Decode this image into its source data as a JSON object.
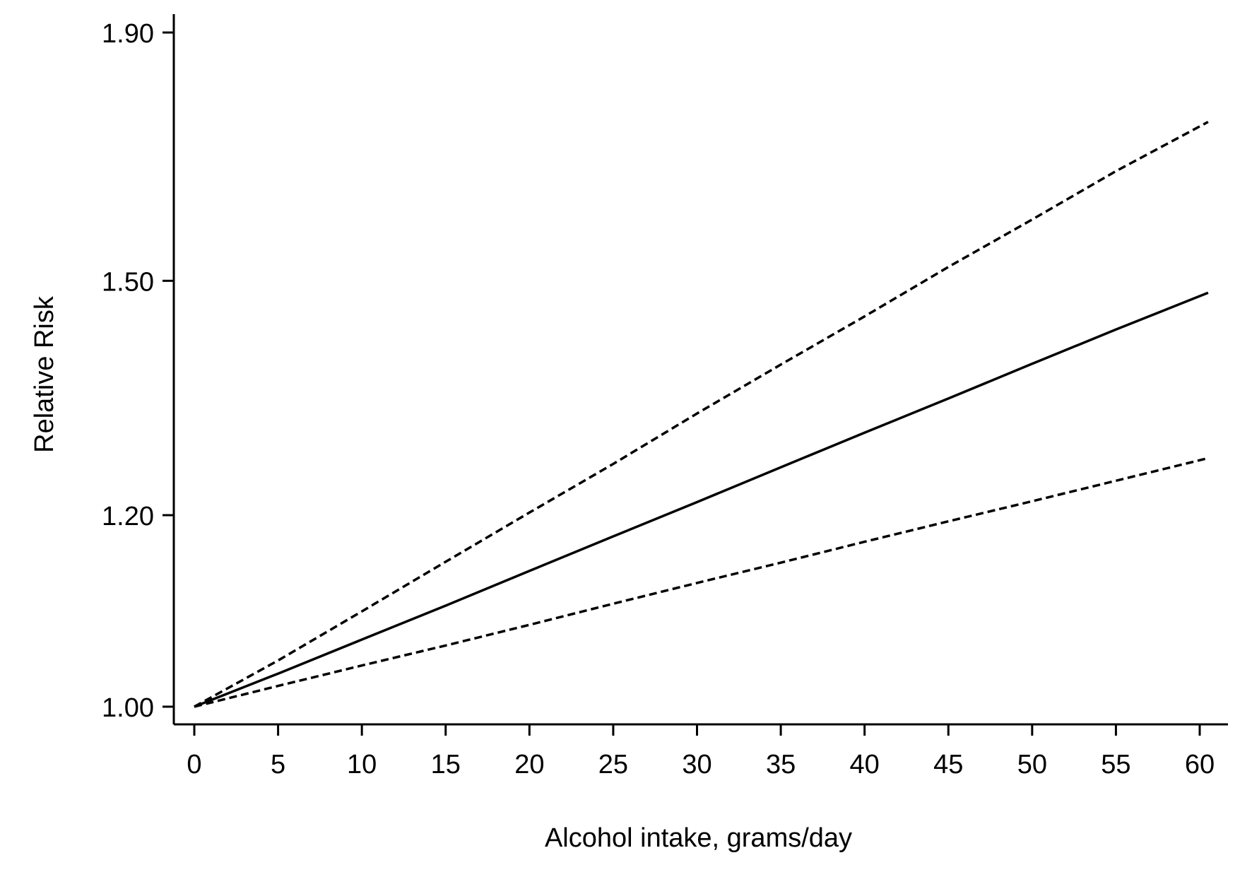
{
  "chart_data": {
    "type": "line",
    "title": "",
    "xlabel": "Alcohol intake, grams/day",
    "ylabel": "Relative Risk",
    "xlim": [
      0,
      60.5
    ],
    "ylim": [
      0.97,
      1.91
    ],
    "x_ticks": [
      0,
      5,
      10,
      15,
      20,
      25,
      30,
      35,
      40,
      45,
      50,
      55,
      60
    ],
    "x_tick_labels": [
      "0",
      "5",
      "10",
      "15",
      "20",
      "25",
      "30",
      "35",
      "40",
      "45",
      "50",
      "55",
      "60"
    ],
    "y_ticks": [
      1.0,
      1.2,
      1.5,
      1.9
    ],
    "y_tick_labels": [
      "1.00",
      "1.20",
      "1.50",
      "1.90"
    ],
    "y_scale": "log",
    "grid": false,
    "legend": "none",
    "series": [
      {
        "style": "dashed",
        "x": [
          0,
          5,
          10,
          15,
          20,
          25,
          30,
          35,
          40,
          45,
          50,
          55,
          60.5
        ],
        "values": [
          1.0,
          1.045,
          1.095,
          1.148,
          1.203,
          1.26,
          1.322,
          1.385,
          1.45,
          1.52,
          1.59,
          1.665,
          1.745
        ]
      },
      {
        "style": "solid",
        "x": [
          0,
          5,
          10,
          15,
          20,
          25,
          30,
          35,
          40,
          45,
          50,
          55,
          60.5
        ],
        "values": [
          1.0,
          1.032,
          1.066,
          1.101,
          1.138,
          1.176,
          1.215,
          1.256,
          1.298,
          1.341,
          1.386,
          1.432,
          1.483
        ]
      },
      {
        "style": "dashed",
        "x": [
          0,
          5,
          10,
          15,
          20,
          25,
          30,
          35,
          40,
          45,
          50,
          55,
          60.5
        ],
        "values": [
          1.0,
          1.02,
          1.04,
          1.06,
          1.081,
          1.103,
          1.125,
          1.147,
          1.17,
          1.193,
          1.216,
          1.24,
          1.267
        ]
      }
    ],
    "colors": {
      "line": "#000000",
      "background": "#ffffff"
    }
  }
}
